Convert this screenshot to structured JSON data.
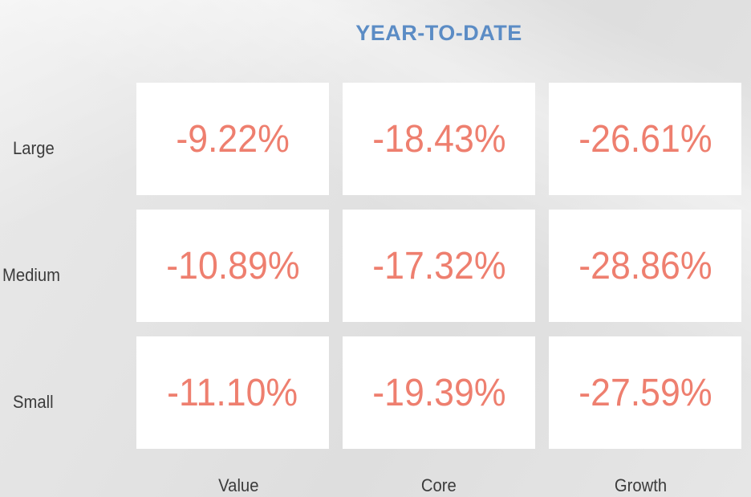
{
  "chart_data": {
    "type": "table",
    "title": "YEAR-TO-DATE",
    "rows": [
      "Large",
      "Medium",
      "Small"
    ],
    "columns": [
      "Value",
      "Core",
      "Growth"
    ],
    "values": [
      [
        "-9.22%",
        "-18.43%",
        "-26.61%"
      ],
      [
        "-10.89%",
        "-17.32%",
        "-28.86%"
      ],
      [
        "-11.10%",
        "-19.39%",
        "-27.59%"
      ]
    ],
    "numeric_values": [
      [
        -9.22,
        -18.43,
        -26.61
      ],
      [
        -10.89,
        -17.32,
        -28.86
      ],
      [
        -11.1,
        -19.39,
        -27.59
      ]
    ],
    "value_color": "#ee7f6f",
    "title_color": "#5b8cc5"
  }
}
